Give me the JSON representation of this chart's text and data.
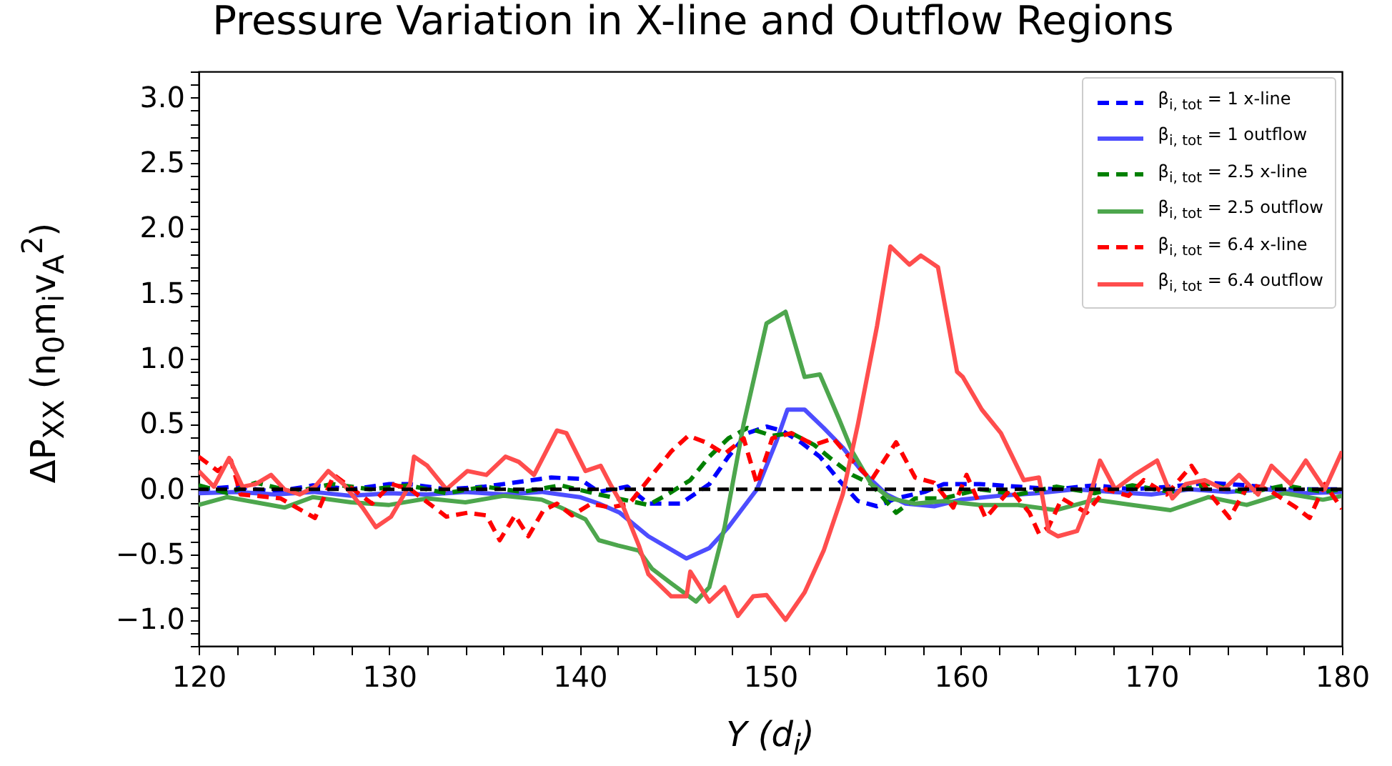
{
  "chart_data": {
    "type": "line",
    "title": "Pressure Variation in X-line and Outflow Regions",
    "xlabel": "Y (d$_{i}$)",
    "ylabel": "ΔP$_{XX}$ (n$_{0}$m$_{i}$v$_{A}$$^{2}$)",
    "xlim": [
      120,
      180
    ],
    "ylim": [
      -1.2,
      3.2
    ],
    "xticks": [
      120,
      {
        "value": 122,
        "label": null
      },
      {
        "value": 124,
        "label": null
      },
      {
        "value": 126,
        "label": null
      },
      {
        "value": 128,
        "label": null
      },
      130,
      {
        "value": 132,
        "label": null
      },
      {
        "value": 134,
        "label": null
      },
      {
        "value": 136,
        "label": null
      },
      {
        "value": 138,
        "label": null
      },
      140,
      {
        "value": 142,
        "label": null
      },
      {
        "value": 144,
        "label": null
      },
      {
        "value": 146,
        "label": null
      },
      {
        "value": 148,
        "label": null
      },
      150,
      {
        "value": 152,
        "label": null
      },
      {
        "value": 154,
        "label": null
      },
      {
        "value": 156,
        "label": null
      },
      {
        "value": 158,
        "label": null
      },
      160,
      {
        "value": 162,
        "label": null
      },
      {
        "value": 164,
        "label": null
      },
      {
        "value": 166,
        "label": null
      },
      {
        "value": 168,
        "label": null
      },
      170,
      {
        "value": 172,
        "label": null
      },
      {
        "value": 174,
        "label": null
      },
      {
        "value": 176,
        "label": null
      },
      {
        "value": 178,
        "label": null
      },
      180
    ],
    "yticks": [
      {
        "value": -1.2,
        "label": null
      },
      {
        "value": -1.1,
        "label": null
      },
      {
        "value": -1,
        "label": "−1.0"
      },
      {
        "value": -0.9,
        "label": null
      },
      {
        "value": -0.8,
        "label": null
      },
      {
        "value": -0.7,
        "label": null
      },
      {
        "value": -0.6,
        "label": null
      },
      {
        "value": -0.5,
        "label": "−0.5"
      },
      {
        "value": -0.4,
        "label": null
      },
      {
        "value": -0.3,
        "label": null
      },
      {
        "value": -0.2,
        "label": null
      },
      {
        "value": -0.1,
        "label": null
      },
      {
        "value": 0,
        "label": "0.0"
      },
      {
        "value": 0.1,
        "label": null
      },
      {
        "value": 0.2,
        "label": null
      },
      {
        "value": 0.3,
        "label": null
      },
      {
        "value": 0.4,
        "label": null
      },
      {
        "value": 0.5,
        "label": "0.5"
      },
      {
        "value": 0.6,
        "label": null
      },
      {
        "value": 0.7,
        "label": null
      },
      {
        "value": 0.8,
        "label": null
      },
      {
        "value": 0.9,
        "label": null
      },
      {
        "value": 1,
        "label": "1.0"
      },
      {
        "value": 1.1,
        "label": null
      },
      {
        "value": 1.2,
        "label": null
      },
      {
        "value": 1.3,
        "label": null
      },
      {
        "value": 1.4,
        "label": null
      },
      {
        "value": 1.5,
        "label": "1.5"
      },
      {
        "value": 1.6,
        "label": null
      },
      {
        "value": 1.7,
        "label": null
      },
      {
        "value": 1.8,
        "label": null
      },
      {
        "value": 1.9,
        "label": null
      },
      {
        "value": 2,
        "label": "2.0"
      },
      {
        "value": 2.1,
        "label": null
      },
      {
        "value": 2.2,
        "label": null
      },
      {
        "value": 2.3,
        "label": null
      },
      {
        "value": 2.4,
        "label": null
      },
      {
        "value": 2.5,
        "label": "2.5"
      },
      {
        "value": 2.6,
        "label": null
      },
      {
        "value": 2.7,
        "label": null
      },
      {
        "value": 2.8,
        "label": null
      },
      {
        "value": 2.9,
        "label": null
      },
      {
        "value": 3,
        "label": "3.0"
      },
      {
        "value": 3.1,
        "label": null
      },
      {
        "value": 3.2,
        "label": null
      }
    ],
    "legend": "top right",
    "series": [
      {
        "name": "β$_{i, tot}$ = 1 x-line",
        "color": "#0000ff",
        "line_style": "dashed",
        "x": [
          120,
          122,
          124,
          126,
          128,
          130,
          131,
          133,
          135,
          137,
          138.5,
          140,
          141,
          142.5,
          143.6,
          145.3,
          146.8,
          147.8,
          148.8,
          149.8,
          150.6,
          151.6,
          152.6,
          153.6,
          154.6,
          155.6,
          156.6,
          158.1,
          159.1,
          161,
          163,
          165,
          167,
          169,
          171,
          173,
          175,
          177,
          180
        ],
        "values": [
          0.0,
          0.02,
          -0.02,
          0.03,
          0.0,
          0.04,
          0.04,
          0.0,
          0.02,
          0.06,
          0.09,
          0.08,
          -0.02,
          0.02,
          -0.11,
          -0.11,
          0.04,
          0.25,
          0.43,
          0.48,
          0.45,
          0.36,
          0.25,
          0.07,
          -0.09,
          -0.13,
          -0.07,
          -0.02,
          0.04,
          0.04,
          0.02,
          0.0,
          0.03,
          0.0,
          0.02,
          0.05,
          0.03,
          0.0,
          0.0
        ]
      },
      {
        "name": "β$_{i, tot}$ = 1 outflow",
        "color": "#4d4dff",
        "line_style": "solid",
        "x": [
          120,
          122,
          124,
          126,
          128,
          130,
          132,
          134,
          136,
          138,
          140,
          141,
          142.1,
          143.6,
          145.6,
          146.8,
          147.8,
          149.3,
          150.3,
          150.9,
          151.8,
          152.8,
          153.8,
          154.8,
          156.1,
          157.1,
          158.6,
          160,
          162,
          164,
          166,
          168,
          170,
          172,
          174,
          176,
          178,
          180
        ],
        "values": [
          -0.03,
          -0.02,
          -0.04,
          -0.02,
          -0.05,
          -0.03,
          -0.04,
          -0.02,
          -0.04,
          -0.02,
          -0.06,
          -0.11,
          -0.18,
          -0.36,
          -0.53,
          -0.45,
          -0.29,
          0.0,
          0.36,
          0.61,
          0.61,
          0.47,
          0.32,
          0.14,
          -0.04,
          -0.11,
          -0.13,
          -0.08,
          -0.05,
          -0.03,
          0.0,
          -0.02,
          -0.04,
          0.0,
          -0.02,
          0.0,
          -0.03,
          -0.02
        ]
      },
      {
        "name": "β$_{i, tot}$ = 2.5 x-line",
        "color": "#008000",
        "line_style": "dashed",
        "x": [
          120,
          121.5,
          123,
          125,
          127,
          129,
          131,
          133,
          135,
          137,
          139,
          141,
          143.6,
          144.6,
          145.8,
          146.8,
          147.8,
          148.8,
          150.1,
          151.1,
          152.3,
          153.3,
          154.3,
          155.3,
          156.6,
          157.6,
          159.1,
          161,
          163,
          165,
          167,
          169,
          171,
          173,
          175,
          177,
          179,
          180
        ],
        "values": [
          0.03,
          -0.03,
          0.05,
          -0.02,
          0.04,
          0.0,
          0.03,
          -0.03,
          0.02,
          -0.02,
          0.03,
          -0.04,
          -0.12,
          -0.04,
          0.07,
          0.25,
          0.39,
          0.47,
          0.41,
          0.43,
          0.34,
          0.22,
          0.11,
          0.04,
          -0.18,
          -0.07,
          -0.07,
          0.0,
          -0.04,
          0.02,
          -0.03,
          0.03,
          -0.02,
          0.04,
          -0.03,
          0.03,
          -0.02,
          0.0
        ]
      },
      {
        "name": "β$_{i, tot}$ = 2.5 outflow",
        "color": "#4da64d",
        "line_style": "solid",
        "x": [
          120,
          121.5,
          123,
          124.5,
          126,
          128,
          130,
          132,
          134,
          136,
          138,
          139,
          140.3,
          141,
          142,
          143.1,
          143.8,
          144.8,
          146.1,
          146.8,
          147.6,
          148.6,
          149.8,
          150.8,
          151.8,
          152.6,
          153.6,
          154.3,
          155.3,
          156.3,
          157.6,
          159.1,
          161,
          163,
          165,
          167,
          169,
          171,
          173,
          175,
          177,
          179,
          180
        ],
        "values": [
          -0.12,
          -0.06,
          -0.1,
          -0.14,
          -0.06,
          -0.1,
          -0.12,
          -0.07,
          -0.1,
          -0.05,
          -0.08,
          -0.14,
          -0.23,
          -0.39,
          -0.43,
          -0.47,
          -0.61,
          -0.72,
          -0.86,
          -0.75,
          -0.29,
          0.5,
          1.27,
          1.36,
          0.86,
          0.88,
          0.54,
          0.29,
          0.04,
          -0.07,
          -0.11,
          -0.09,
          -0.12,
          -0.12,
          -0.16,
          -0.08,
          -0.12,
          -0.16,
          -0.06,
          -0.12,
          -0.03,
          -0.08,
          -0.05
        ]
      },
      {
        "name": "β$_{i, tot}$ = 6.4 x-line",
        "color": "#ff0000",
        "line_style": "dashed",
        "x": [
          120,
          121,
          121.7,
          122.2,
          123,
          124.3,
          126.1,
          127.1,
          128.1,
          129.1,
          130.1,
          131.1,
          132.1,
          133,
          134.1,
          135.1,
          135.8,
          136.6,
          137.3,
          138.1,
          138.8,
          139.6,
          140.6,
          141.6,
          142.6,
          143.8,
          144.8,
          145.7,
          146.6,
          147.6,
          148.6,
          149.3,
          150.1,
          151.1,
          152.3,
          153.3,
          154.3,
          155.3,
          156.6,
          157.6,
          158.6,
          159.6,
          160.3,
          161.3,
          162.6,
          163.6,
          164.1,
          164.6,
          165.3,
          166.6,
          167.6,
          168.8,
          169.6,
          170.8,
          172.1,
          173.1,
          174.1,
          175.1,
          176.1,
          177.6,
          178.3,
          179.1,
          180
        ],
        "values": [
          0.25,
          0.14,
          0.22,
          -0.04,
          -0.05,
          -0.07,
          -0.22,
          0.11,
          0.0,
          -0.11,
          0.04,
          0.0,
          -0.11,
          -0.21,
          -0.18,
          -0.2,
          -0.39,
          -0.2,
          -0.36,
          -0.16,
          -0.11,
          -0.2,
          -0.11,
          -0.14,
          -0.11,
          0.11,
          0.29,
          0.41,
          0.36,
          0.27,
          0.39,
          0.04,
          0.39,
          0.43,
          0.34,
          0.39,
          0.22,
          0.07,
          0.36,
          0.09,
          0.05,
          -0.14,
          0.11,
          -0.22,
          0.0,
          -0.18,
          -0.34,
          -0.29,
          -0.07,
          -0.18,
          0.0,
          -0.05,
          0.07,
          -0.04,
          0.18,
          -0.04,
          -0.22,
          0.04,
          0.0,
          -0.14,
          -0.22,
          0.04,
          -0.15
        ]
      },
      {
        "name": "β$_{i, tot}$ = 6.4 outflow",
        "color": "#ff4d4d",
        "line_style": "solid",
        "x": [
          120,
          120.8,
          121.6,
          122.3,
          123,
          123.8,
          124.5,
          125.3,
          126.1,
          126.8,
          127.6,
          128.6,
          129.3,
          130.1,
          131.1,
          131.3,
          132,
          133,
          134.1,
          135.1,
          136.1,
          136.8,
          137.6,
          138.8,
          139.3,
          140.3,
          141.1,
          141.6,
          142.3,
          143.1,
          143.6,
          144.8,
          145.6,
          145.8,
          146.8,
          147.6,
          148.3,
          149.1,
          149.8,
          150.8,
          151.8,
          152.8,
          153.8,
          154.6,
          155.6,
          156.3,
          157.3,
          157.9,
          158.8,
          159.8,
          160.1,
          161.1,
          162.1,
          163.3,
          164.1,
          164.6,
          165.1,
          166.1,
          166.6,
          167.3,
          168.1,
          169.1,
          170.3,
          171.1,
          171.8,
          172.8,
          173.8,
          174.6,
          175.6,
          176.3,
          177.3,
          178.1,
          179.1,
          180
        ],
        "values": [
          0.14,
          0.02,
          0.24,
          0.02,
          0.04,
          0.11,
          0.0,
          -0.04,
          0.02,
          0.14,
          0.04,
          -0.14,
          -0.29,
          -0.21,
          0.04,
          0.25,
          0.18,
          0.0,
          0.14,
          0.11,
          0.25,
          0.21,
          0.11,
          0.45,
          0.43,
          0.14,
          0.18,
          0.04,
          -0.14,
          -0.43,
          -0.65,
          -0.82,
          -0.82,
          -0.63,
          -0.86,
          -0.75,
          -0.97,
          -0.82,
          -0.81,
          -1.0,
          -0.79,
          -0.47,
          -0.04,
          0.5,
          1.25,
          1.86,
          1.72,
          1.79,
          1.7,
          0.9,
          0.86,
          0.61,
          0.43,
          0.07,
          0.09,
          -0.32,
          -0.36,
          -0.32,
          -0.14,
          0.22,
          0.0,
          0.11,
          0.22,
          -0.07,
          0.04,
          0.07,
          0.0,
          0.11,
          -0.04,
          0.18,
          0.04,
          0.22,
          0.0,
          0.29
        ]
      }
    ],
    "ref_lines": [
      {
        "axis": "y",
        "value": 0,
        "color": "#000000",
        "line_style": "dashed"
      }
    ]
  }
}
